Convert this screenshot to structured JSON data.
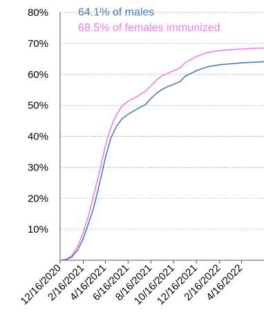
{
  "chart_data": {
    "type": "line",
    "x_type": "date",
    "x_range": [
      "2020-12-16",
      "2022-06-15"
    ],
    "x_tick_labels": [
      "12/16/2020",
      "2/16/2021",
      "4/16/2021",
      "6/16/2021",
      "8/16/2021",
      "10/16/2021",
      "12/16/2021",
      "2/16/2022",
      "4/16/2022"
    ],
    "x_tick_dates": [
      "2020-12-16",
      "2021-02-16",
      "2021-04-16",
      "2021-06-16",
      "2021-08-16",
      "2021-10-16",
      "2021-12-16",
      "2022-02-16",
      "2022-04-16"
    ],
    "y_range": [
      0,
      80
    ],
    "y_unit": "%",
    "y_ticks": [
      10,
      20,
      30,
      40,
      50,
      60,
      70,
      80
    ],
    "y_tick_labels": [
      "10%",
      "20%",
      "30%",
      "40%",
      "50%",
      "60%",
      "70%",
      "80%"
    ],
    "grid": "horizontal dotted",
    "annotations": [
      {
        "text": "68.5% of females immunized",
        "series": "females",
        "color": "#f07cf0"
      },
      {
        "text": "64.1% of males",
        "series": "males",
        "color": "#4a78b8"
      }
    ],
    "series": [
      {
        "key": "females",
        "color": "#f07cf0",
        "points": [
          [
            "2020-12-16",
            0
          ],
          [
            "2021-01-01",
            0.3
          ],
          [
            "2021-01-16",
            1.5
          ],
          [
            "2021-02-01",
            4.5
          ],
          [
            "2021-02-16",
            9
          ],
          [
            "2021-03-01",
            14
          ],
          [
            "2021-03-16",
            21
          ],
          [
            "2021-04-01",
            29
          ],
          [
            "2021-04-16",
            37
          ],
          [
            "2021-05-01",
            43
          ],
          [
            "2021-05-16",
            47
          ],
          [
            "2021-06-01",
            50
          ],
          [
            "2021-06-16",
            51.3
          ],
          [
            "2021-07-01",
            52.3
          ],
          [
            "2021-07-16",
            53.3
          ],
          [
            "2021-08-01",
            54.5
          ],
          [
            "2021-08-16",
            56.3
          ],
          [
            "2021-09-01",
            58.3
          ],
          [
            "2021-09-16",
            59.6
          ],
          [
            "2021-10-01",
            60.4
          ],
          [
            "2021-10-16",
            61.2
          ],
          [
            "2021-11-01",
            62
          ],
          [
            "2021-11-16",
            63.8
          ],
          [
            "2021-12-01",
            64.8
          ],
          [
            "2021-12-16",
            65.8
          ],
          [
            "2022-01-01",
            66.5
          ],
          [
            "2022-01-16",
            67.1
          ],
          [
            "2022-02-01",
            67.4
          ],
          [
            "2022-02-16",
            67.7
          ],
          [
            "2022-03-16",
            68
          ],
          [
            "2022-04-16",
            68.2
          ],
          [
            "2022-05-16",
            68.4
          ],
          [
            "2022-06-15",
            68.5
          ]
        ]
      },
      {
        "key": "males",
        "color": "#4a78b8",
        "points": [
          [
            "2020-12-16",
            0
          ],
          [
            "2021-01-01",
            0.2
          ],
          [
            "2021-01-16",
            1
          ],
          [
            "2021-02-01",
            3.3
          ],
          [
            "2021-02-16",
            7
          ],
          [
            "2021-03-01",
            11.5
          ],
          [
            "2021-03-16",
            17
          ],
          [
            "2021-04-01",
            25
          ],
          [
            "2021-04-16",
            33
          ],
          [
            "2021-05-01",
            39.5
          ],
          [
            "2021-05-16",
            43.3
          ],
          [
            "2021-06-01",
            45.8
          ],
          [
            "2021-06-16",
            47.1
          ],
          [
            "2021-07-01",
            48.2
          ],
          [
            "2021-07-16",
            49.2
          ],
          [
            "2021-08-01",
            50.2
          ],
          [
            "2021-08-16",
            52.2
          ],
          [
            "2021-09-01",
            54
          ],
          [
            "2021-09-16",
            55.2
          ],
          [
            "2021-10-01",
            56.1
          ],
          [
            "2021-10-16",
            56.8
          ],
          [
            "2021-11-01",
            57.6
          ],
          [
            "2021-11-16",
            59.4
          ],
          [
            "2021-12-01",
            60.3
          ],
          [
            "2021-12-16",
            61.2
          ],
          [
            "2022-01-01",
            61.9
          ],
          [
            "2022-01-16",
            62.5
          ],
          [
            "2022-02-01",
            62.8
          ],
          [
            "2022-02-16",
            63.1
          ],
          [
            "2022-03-16",
            63.4
          ],
          [
            "2022-04-16",
            63.7
          ],
          [
            "2022-05-16",
            63.9
          ],
          [
            "2022-06-15",
            64.1
          ]
        ]
      }
    ]
  }
}
